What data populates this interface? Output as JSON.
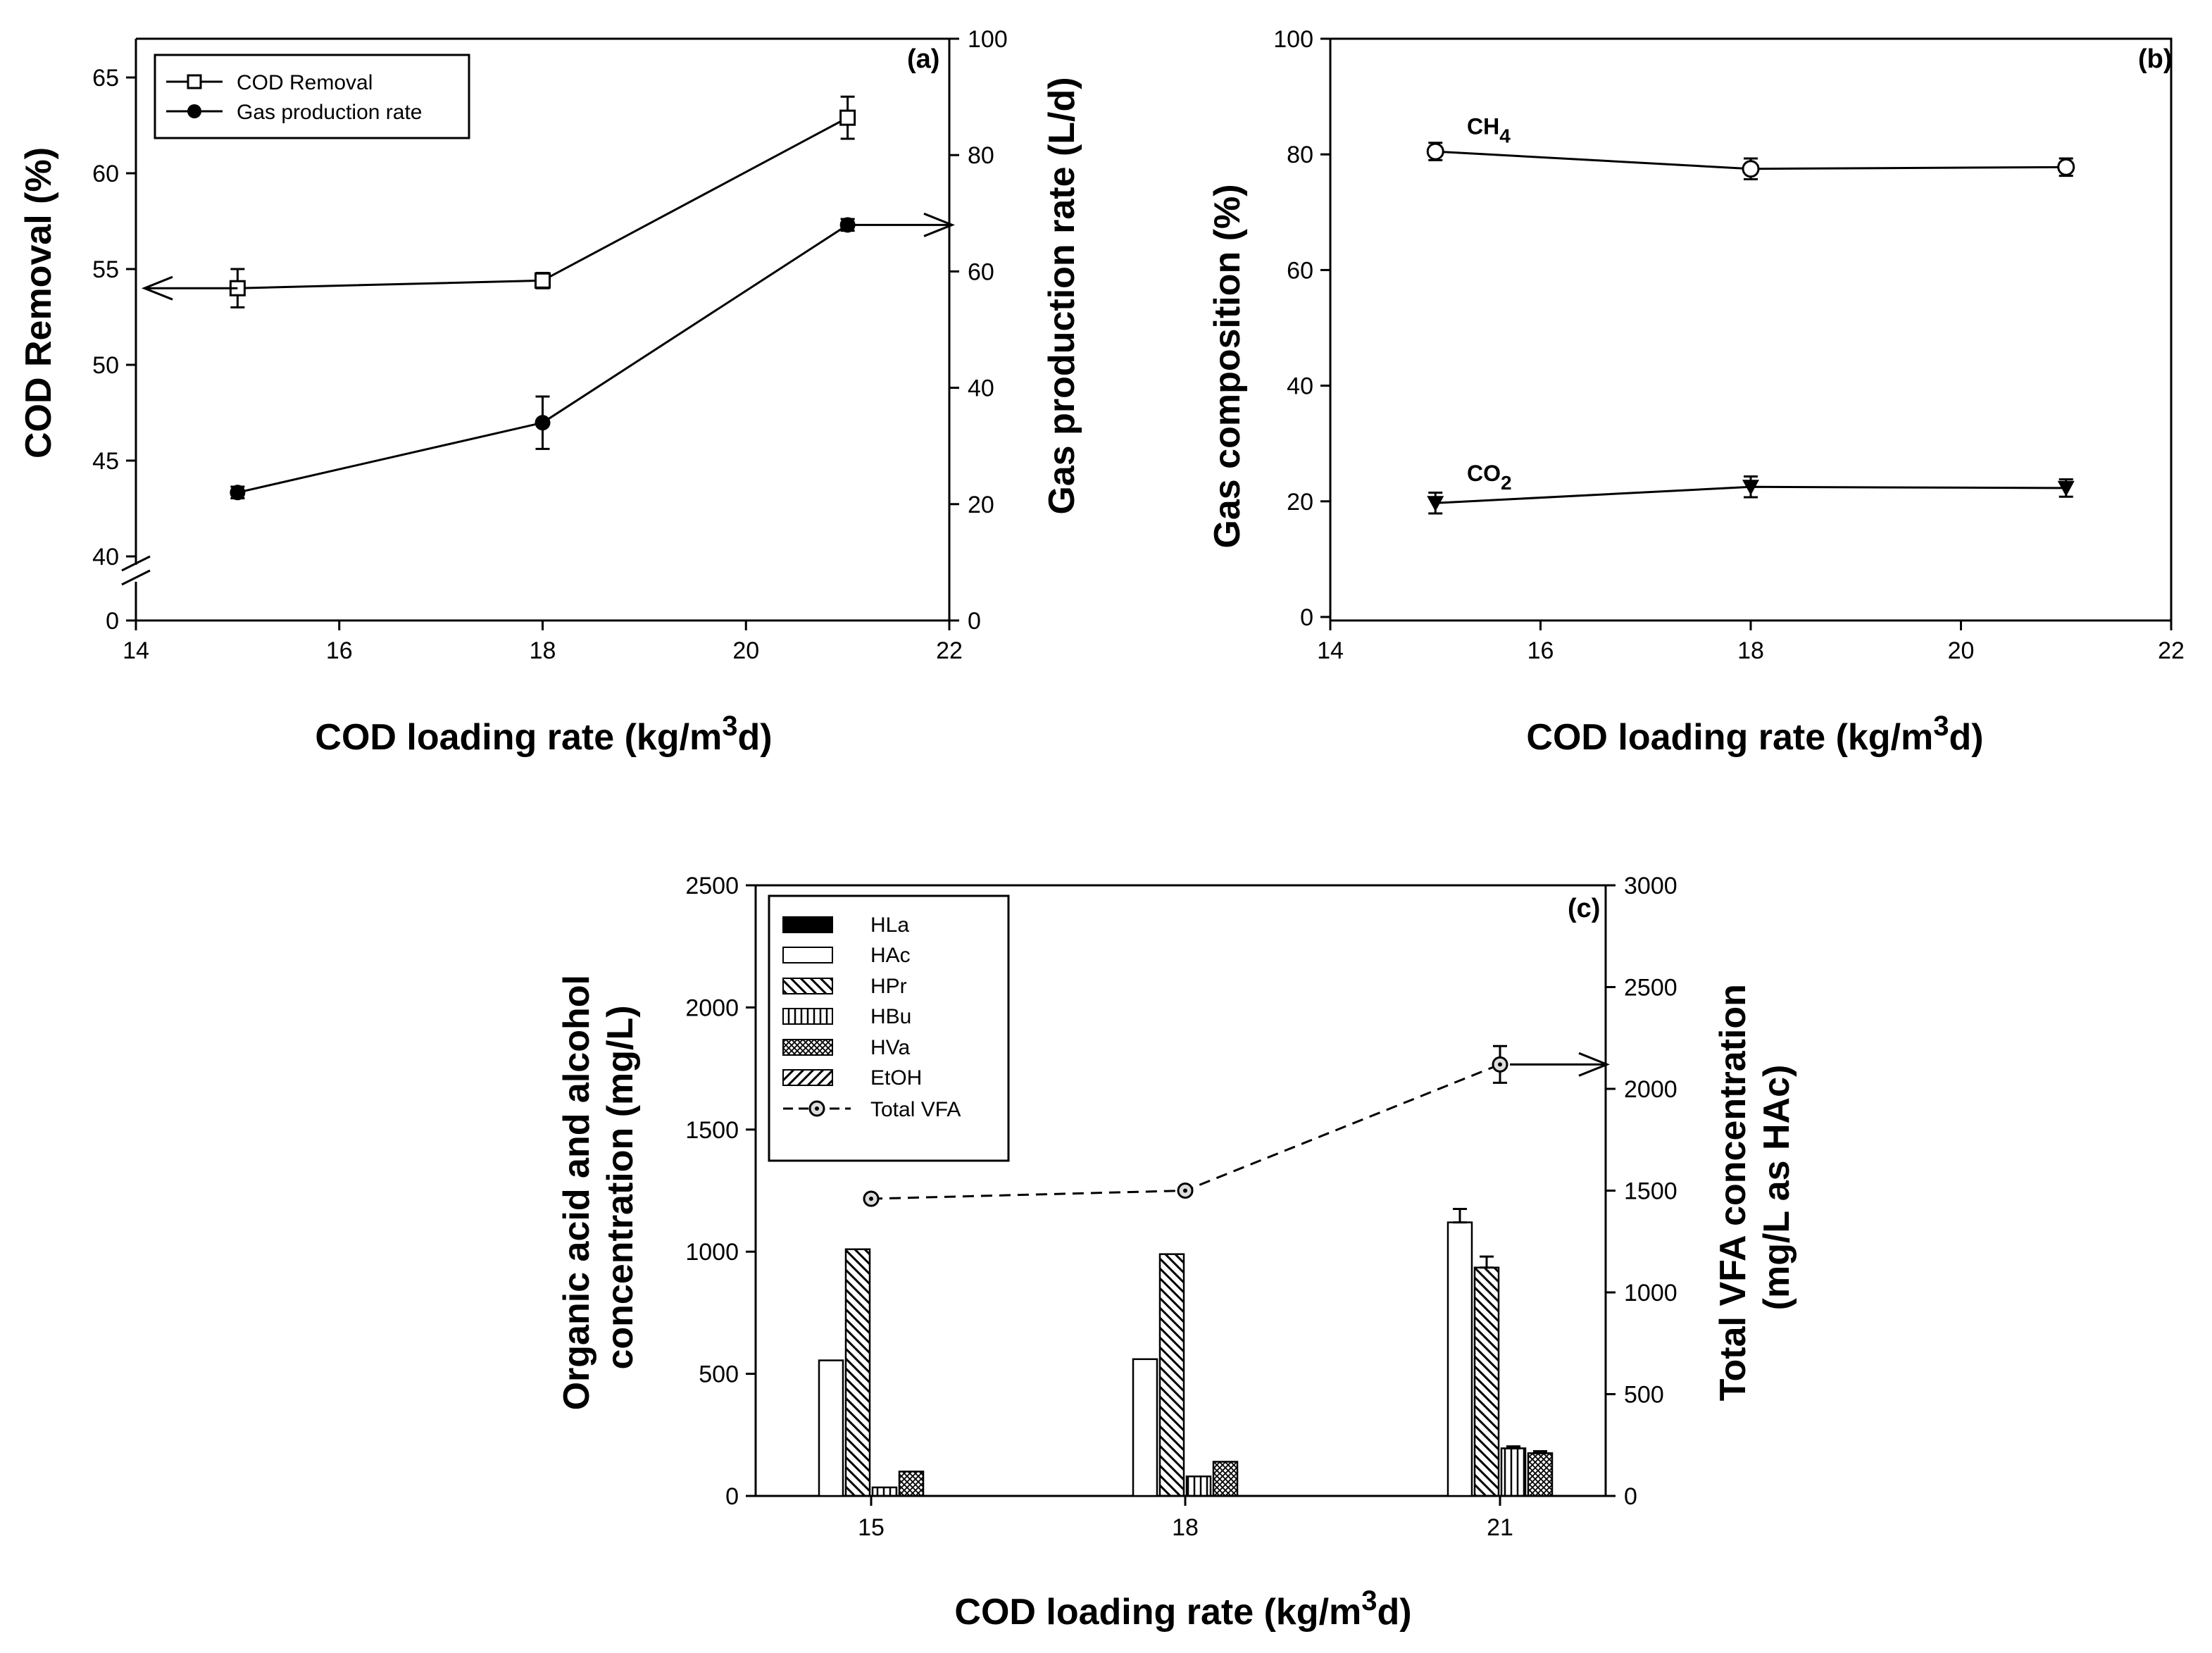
{
  "chart_data": [
    {
      "panel": "(a)",
      "type": "line",
      "x": [
        15,
        18,
        21
      ],
      "xlabel": "COD loading rate (kg/m",
      "xlabel_sup": "3",
      "xlabel_tail": "d)",
      "xlim": [
        14,
        22
      ],
      "xticks": [
        14,
        16,
        18,
        20,
        22
      ],
      "ylabel": "COD Removal (%)",
      "ylim": [
        40,
        65
      ],
      "yticks": [
        40,
        45,
        50,
        55,
        60,
        65
      ],
      "y_zero_label": "0",
      "y2label": "Gas production rate (L/d)",
      "y2lim": [
        0,
        100
      ],
      "y2ticks": [
        0,
        20,
        40,
        60,
        80,
        100
      ],
      "legend_position": "top-left",
      "series": [
        {
          "name": "COD Removal",
          "axis": "left",
          "marker": "open-square",
          "values": [
            54.0,
            54.4,
            62.9
          ],
          "errors": [
            1.0,
            0.4,
            1.1
          ]
        },
        {
          "name": "Gas production rate",
          "axis": "right",
          "marker": "filled-circle",
          "values": [
            22.0,
            34.0,
            68.0
          ],
          "errors": [
            1.0,
            4.5,
            1.0
          ]
        }
      ]
    },
    {
      "panel": "(b)",
      "type": "line",
      "x": [
        15,
        18,
        21
      ],
      "xlabel": "COD loading rate (kg/m",
      "xlabel_sup": "3",
      "xlabel_tail": "d)",
      "xlim": [
        14,
        22
      ],
      "xticks": [
        14,
        16,
        18,
        20,
        22
      ],
      "ylabel": "Gas composition (%)",
      "ylim": [
        0,
        100
      ],
      "yticks": [
        0,
        20,
        40,
        60,
        80,
        100
      ],
      "annotations": [
        {
          "text": "CH",
          "sub": "4",
          "x": 15.3,
          "y": 83.5
        },
        {
          "text": "CO",
          "sub": "2",
          "x": 15.3,
          "y": 23.5
        }
      ],
      "series": [
        {
          "name": "CH4",
          "marker": "open-circle",
          "values": [
            80.5,
            77.5,
            77.8
          ],
          "errors": [
            1.5,
            1.8,
            1.5
          ]
        },
        {
          "name": "CO2",
          "marker": "filled-triangle-down",
          "values": [
            19.7,
            22.5,
            22.3
          ],
          "errors": [
            1.8,
            1.8,
            1.5
          ]
        }
      ]
    },
    {
      "panel": "(c)",
      "type": "bar",
      "categories": [
        "15",
        "18",
        "21"
      ],
      "xlabel": "COD loading rate (kg/m",
      "xlabel_sup": "3",
      "xlabel_tail": "d)",
      "ylabel_line1": "Organic acid and alcohol",
      "ylabel_line2": "concentration (mg/L)",
      "ylim": [
        0,
        2500
      ],
      "yticks": [
        0,
        500,
        1000,
        1500,
        2000,
        2500
      ],
      "y2label_line1": "Total VFA concentration",
      "y2label_line2": "(mg/L as HAc)",
      "y2lim": [
        0,
        3000
      ],
      "y2ticks": [
        0,
        500,
        1000,
        1500,
        2000,
        2500,
        3000
      ],
      "legend_position": "top-left",
      "series": [
        {
          "name": "HLa",
          "pattern": "solid-black",
          "values": [
            0,
            0,
            0
          ]
        },
        {
          "name": "HAc",
          "pattern": "open",
          "values": [
            555,
            560,
            1120
          ],
          "errors": [
            0,
            0,
            55
          ]
        },
        {
          "name": "HPr",
          "pattern": "diagonal-back",
          "values": [
            1010,
            990,
            935
          ],
          "errors": [
            0,
            0,
            45
          ]
        },
        {
          "name": "HBu",
          "pattern": "vertical",
          "values": [
            35,
            80,
            195
          ],
          "errors": [
            0,
            0,
            8
          ]
        },
        {
          "name": "HVa",
          "pattern": "crosshatch",
          "values": [
            100,
            140,
            175
          ],
          "errors": [
            0,
            0,
            8
          ]
        },
        {
          "name": "EtOH",
          "pattern": "diagonal-forward",
          "values": [
            0,
            0,
            0
          ]
        }
      ],
      "line_series": {
        "name": "Total VFA",
        "axis": "right",
        "marker": "circle-dot",
        "style": "dashed",
        "values": [
          1460,
          1500,
          2120
        ],
        "errors": [
          0,
          0,
          90
        ]
      }
    }
  ]
}
